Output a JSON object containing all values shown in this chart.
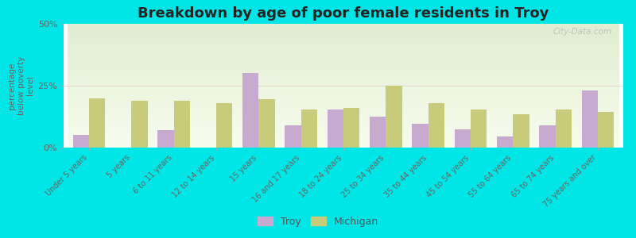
{
  "title": "Breakdown by age of poor female residents in Troy",
  "ylabel": "percentage\nbelow poverty\nlevel",
  "categories": [
    "Under 5 years",
    "5 years",
    "6 to 11 years",
    "12 to 14 years",
    "15 years",
    "16 and 17 years",
    "18 to 24 years",
    "25 to 34 years",
    "35 to 44 years",
    "45 to 54 years",
    "55 to 64 years",
    "65 to 74 years",
    "75 years and over"
  ],
  "troy_values": [
    5.0,
    0.0,
    7.0,
    0.0,
    30.0,
    9.0,
    15.5,
    12.5,
    9.5,
    7.5,
    4.5,
    9.0,
    23.0
  ],
  "michigan_values": [
    20.0,
    19.0,
    19.0,
    18.0,
    19.5,
    15.5,
    16.0,
    25.0,
    18.0,
    15.5,
    13.5,
    15.5,
    14.5
  ],
  "troy_color": "#c8aad0",
  "michigan_color": "#c8cc7a",
  "ylim": [
    0,
    50
  ],
  "yticks": [
    0,
    25,
    50
  ],
  "ytick_labels": [
    "0%",
    "25%",
    "50%"
  ],
  "bg_color": "#00e5e5",
  "bar_width": 0.38,
  "title_fontsize": 13,
  "label_fontsize": 7,
  "legend_troy": "Troy",
  "legend_michigan": "Michigan",
  "watermark": "City-Data.com"
}
